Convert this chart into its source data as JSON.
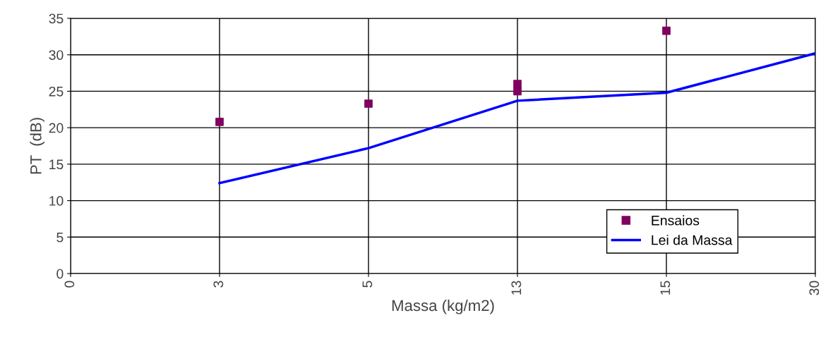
{
  "chart_data": {
    "type": "line",
    "xlabel": "Massa (kg/m2)",
    "ylabel": "PT  (dB)",
    "categories": [
      "0",
      "3",
      "5",
      "13",
      "15",
      "30"
    ],
    "ylim": [
      0,
      35
    ],
    "yticks": [
      0,
      5,
      10,
      15,
      20,
      25,
      30,
      35
    ],
    "grid": true,
    "legend": "bottom right",
    "series": [
      {
        "name": "Ensaios",
        "type": "scatter",
        "color": "#800060",
        "marker": "square",
        "x": [
          "3",
          "5",
          "13",
          "13",
          "15"
        ],
        "values": [
          20.8,
          23.3,
          25.0,
          26.0,
          33.3
        ]
      },
      {
        "name": "Lei da Massa",
        "color": "#0000ff",
        "marker": "none",
        "line_style": "solid",
        "values": [
          null,
          12.4,
          17.2,
          23.7,
          24.8,
          30.2
        ]
      }
    ]
  }
}
